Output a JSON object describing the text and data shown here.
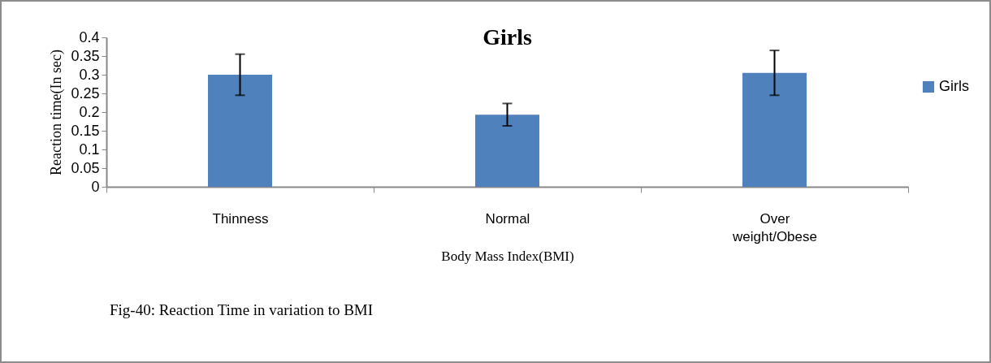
{
  "chart_data": {
    "type": "bar",
    "title": "Girls",
    "xlabel": "Body Mass Index(BMI)",
    "ylabel": "Reaction time(In sec)",
    "categories": [
      "Thinness",
      "Normal",
      "Over weight/Obese"
    ],
    "series": [
      {
        "name": "Girls",
        "color": "#4f81bd",
        "values": [
          0.3,
          0.193,
          0.305
        ],
        "errors": [
          [
            0.245,
            0.355
          ],
          [
            0.163,
            0.223
          ],
          [
            0.245,
            0.365
          ]
        ]
      }
    ],
    "ylim": [
      0,
      0.4
    ],
    "yticks": [
      0,
      0.05,
      0.1,
      0.15,
      0.2,
      0.25,
      0.3,
      0.35,
      0.4
    ],
    "legend": "right",
    "annotations": [
      "Fig-40: Reaction Time in variation to  BMI"
    ]
  }
}
